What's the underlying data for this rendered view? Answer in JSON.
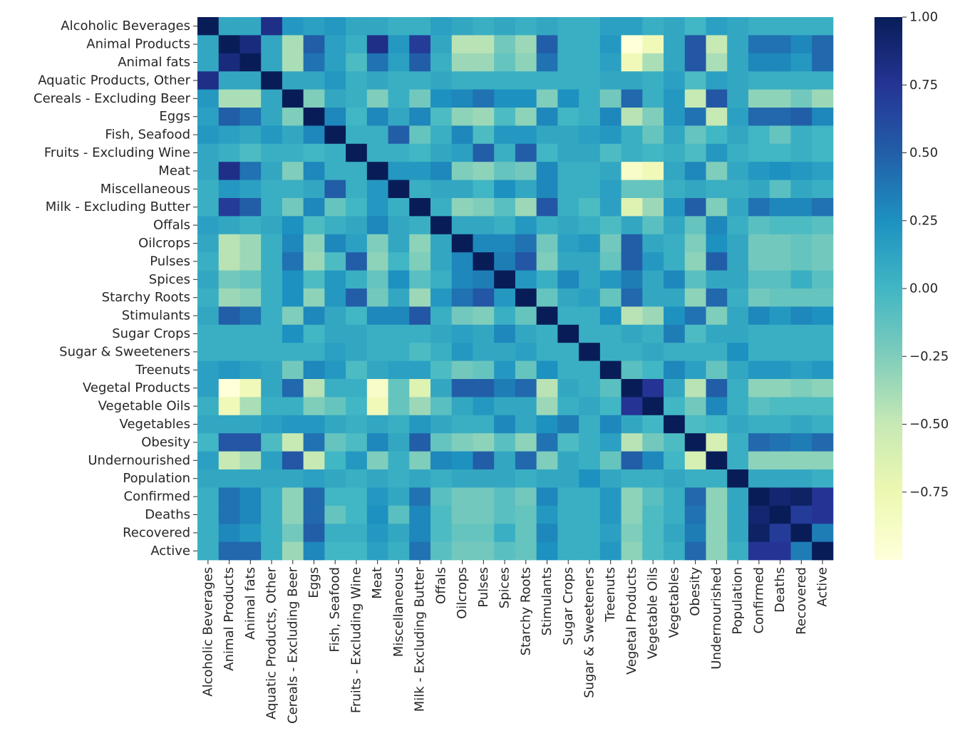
{
  "chart_data": {
    "type": "heatmap",
    "title": "",
    "xlabel": "",
    "ylabel": "",
    "labels": [
      "Alcoholic Beverages",
      "Animal Products",
      "Animal fats",
      "Aquatic Products, Other",
      "Cereals - Excluding Beer",
      "Eggs",
      "Fish, Seafood",
      "Fruits - Excluding Wine",
      "Meat",
      "Miscellaneous",
      "Milk - Excluding Butter",
      "Offals",
      "Oilcrops",
      "Pulses",
      "Spices",
      "Starchy Roots",
      "Stimulants",
      "Sugar Crops",
      "Sugar & Sweeteners",
      "Treenuts",
      "Vegetal Products",
      "Vegetable Oils",
      "Vegetables",
      "Obesity",
      "Undernourished",
      "Population",
      "Confirmed",
      "Deaths",
      "Recovered",
      "Active"
    ],
    "values": [
      [
        1.0,
        0.1,
        0.1,
        0.8,
        0.2,
        0.15,
        0.2,
        0.1,
        0.1,
        0.05,
        0.05,
        0.15,
        0.1,
        0.05,
        0.1,
        0.05,
        0.1,
        0.05,
        0.05,
        0.15,
        0.15,
        0.05,
        0.1,
        0.0,
        0.15,
        0.1,
        0.05,
        0.05,
        0.05,
        0.05
      ],
      [
        0.1,
        1.0,
        0.85,
        0.1,
        -0.4,
        0.5,
        0.15,
        0.05,
        0.8,
        0.2,
        0.7,
        0.1,
        -0.45,
        -0.45,
        -0.2,
        -0.35,
        0.5,
        0.05,
        0.05,
        0.2,
        -1.0,
        -0.8,
        0.1,
        0.55,
        -0.5,
        0.1,
        0.4,
        0.4,
        0.3,
        0.45
      ],
      [
        0.1,
        0.85,
        1.0,
        0.1,
        -0.4,
        0.4,
        0.15,
        -0.05,
        0.4,
        0.15,
        0.5,
        0.05,
        -0.35,
        -0.35,
        -0.15,
        -0.3,
        0.4,
        0.05,
        0.05,
        0.15,
        -0.8,
        -0.4,
        0.1,
        0.55,
        -0.4,
        0.1,
        0.3,
        0.3,
        0.2,
        0.45
      ],
      [
        0.8,
        0.1,
        0.1,
        1.0,
        0.1,
        0.1,
        0.2,
        0.05,
        0.1,
        0.05,
        0.05,
        0.1,
        0.05,
        0.05,
        0.05,
        0.05,
        0.05,
        0.05,
        0.05,
        0.1,
        0.1,
        0.05,
        0.15,
        -0.05,
        0.15,
        0.1,
        0.05,
        0.05,
        0.05,
        0.05
      ],
      [
        0.2,
        -0.4,
        -0.4,
        0.1,
        1.0,
        -0.25,
        0.1,
        0.05,
        -0.25,
        0.05,
        -0.2,
        0.25,
        0.3,
        0.4,
        0.25,
        0.25,
        -0.25,
        0.25,
        0.05,
        -0.2,
        0.45,
        0.05,
        0.2,
        -0.5,
        0.55,
        0.1,
        -0.3,
        -0.3,
        -0.2,
        -0.35
      ],
      [
        0.15,
        0.5,
        0.4,
        0.1,
        -0.25,
        1.0,
        0.3,
        0.0,
        0.3,
        0.1,
        0.3,
        -0.05,
        -0.3,
        -0.35,
        -0.05,
        -0.3,
        0.3,
        0.0,
        0.05,
        0.3,
        -0.45,
        -0.25,
        0.2,
        0.4,
        -0.5,
        0.15,
        0.45,
        0.45,
        0.5,
        0.3
      ],
      [
        0.2,
        0.15,
        0.1,
        0.2,
        0.1,
        0.3,
        1.0,
        0.05,
        0.05,
        0.5,
        -0.15,
        0.05,
        0.3,
        -0.05,
        0.2,
        0.2,
        0.1,
        0.1,
        0.15,
        0.2,
        0.05,
        -0.15,
        0.1,
        -0.15,
        0.0,
        0.1,
        0.0,
        -0.15,
        0.05,
        0.0
      ],
      [
        0.1,
        0.05,
        -0.05,
        0.05,
        0.05,
        0.0,
        0.05,
        1.0,
        0.05,
        0.05,
        0.0,
        0.1,
        0.15,
        0.5,
        0.05,
        0.5,
        0.0,
        0.1,
        0.1,
        -0.05,
        0.05,
        0.0,
        0.05,
        -0.05,
        0.2,
        0.05,
        0.0,
        0.0,
        0.05,
        0.0
      ],
      [
        0.1,
        0.8,
        0.4,
        0.1,
        -0.25,
        0.3,
        0.05,
        0.05,
        1.0,
        0.2,
        0.2,
        0.3,
        -0.25,
        -0.3,
        -0.15,
        -0.2,
        0.3,
        0.05,
        0.05,
        0.1,
        -0.9,
        -0.8,
        0.1,
        0.3,
        -0.25,
        0.1,
        0.2,
        0.25,
        0.2,
        0.15
      ],
      [
        0.05,
        0.2,
        0.15,
        0.05,
        0.05,
        0.1,
        0.5,
        0.05,
        0.2,
        1.0,
        0.05,
        0.1,
        0.1,
        0.0,
        0.25,
        0.1,
        0.3,
        0.05,
        0.05,
        0.15,
        -0.15,
        -0.15,
        0.05,
        0.1,
        0.05,
        0.05,
        0.1,
        -0.1,
        0.1,
        0.05
      ],
      [
        0.05,
        0.7,
        0.5,
        0.05,
        -0.2,
        0.3,
        -0.15,
        0.0,
        0.2,
        0.05,
        1.0,
        0.05,
        -0.3,
        -0.25,
        -0.1,
        -0.35,
        0.55,
        0.05,
        -0.05,
        0.15,
        -0.65,
        -0.35,
        0.2,
        0.5,
        -0.25,
        0.1,
        0.4,
        0.3,
        0.3,
        0.4
      ],
      [
        0.15,
        0.1,
        0.05,
        0.1,
        0.25,
        -0.05,
        0.05,
        0.1,
        0.3,
        0.1,
        0.05,
        1.0,
        0.1,
        0.1,
        0.05,
        0.2,
        0.05,
        0.1,
        0.05,
        -0.05,
        0.1,
        -0.1,
        0.1,
        -0.15,
        0.3,
        0.05,
        -0.1,
        -0.05,
        -0.05,
        -0.1
      ],
      [
        0.1,
        -0.45,
        -0.35,
        0.05,
        0.3,
        -0.3,
        0.3,
        0.15,
        -0.25,
        0.1,
        -0.3,
        0.1,
        1.0,
        0.3,
        0.3,
        0.4,
        -0.2,
        0.15,
        0.2,
        -0.2,
        0.5,
        0.1,
        0.05,
        -0.25,
        0.25,
        0.1,
        -0.2,
        -0.2,
        -0.15,
        -0.2
      ],
      [
        0.05,
        -0.45,
        -0.35,
        0.05,
        0.4,
        -0.35,
        -0.05,
        0.5,
        -0.3,
        0.0,
        -0.25,
        0.1,
        0.3,
        1.0,
        0.35,
        0.55,
        -0.25,
        0.1,
        0.1,
        -0.15,
        0.5,
        0.2,
        0.05,
        -0.3,
        0.5,
        0.1,
        -0.2,
        -0.2,
        -0.15,
        -0.2
      ],
      [
        0.1,
        -0.2,
        -0.15,
        0.05,
        0.25,
        -0.05,
        0.2,
        0.05,
        -0.15,
        0.25,
        -0.1,
        0.05,
        0.3,
        0.35,
        1.0,
        0.2,
        0.05,
        0.3,
        0.1,
        0.2,
        0.35,
        0.1,
        0.3,
        -0.1,
        0.1,
        0.1,
        -0.1,
        -0.1,
        0.05,
        -0.1
      ],
      [
        0.05,
        -0.35,
        -0.3,
        0.05,
        0.25,
        -0.3,
        0.2,
        0.5,
        -0.2,
        0.1,
        -0.35,
        0.2,
        0.4,
        0.55,
        0.2,
        1.0,
        -0.15,
        0.1,
        0.15,
        -0.15,
        0.45,
        0.1,
        0.1,
        -0.3,
        0.45,
        0.05,
        -0.2,
        -0.15,
        -0.15,
        -0.15
      ],
      [
        0.1,
        0.5,
        0.4,
        0.05,
        -0.25,
        0.3,
        0.1,
        0.0,
        0.3,
        0.3,
        0.55,
        0.05,
        -0.2,
        -0.25,
        0.05,
        -0.15,
        1.0,
        0.05,
        0.05,
        0.25,
        -0.45,
        -0.35,
        0.25,
        0.4,
        -0.25,
        0.1,
        0.3,
        0.2,
        0.3,
        0.25
      ],
      [
        0.05,
        0.05,
        0.05,
        0.05,
        0.25,
        0.0,
        0.1,
        0.1,
        0.05,
        0.05,
        0.05,
        0.1,
        0.15,
        0.1,
        0.3,
        0.1,
        0.05,
        1.0,
        0.05,
        0.05,
        0.1,
        0.05,
        0.35,
        -0.05,
        0.1,
        0.1,
        0.05,
        0.05,
        0.05,
        0.05
      ],
      [
        0.05,
        0.05,
        0.05,
        0.05,
        0.05,
        0.05,
        0.15,
        0.1,
        0.05,
        0.05,
        -0.05,
        0.05,
        0.2,
        0.1,
        0.1,
        0.15,
        0.05,
        0.05,
        1.0,
        0.05,
        0.05,
        0.1,
        0.05,
        0.05,
        0.05,
        0.25,
        0.05,
        0.05,
        0.05,
        0.05
      ],
      [
        0.15,
        0.2,
        0.15,
        0.1,
        -0.2,
        0.3,
        0.2,
        -0.05,
        0.1,
        0.15,
        0.15,
        -0.05,
        -0.2,
        -0.15,
        0.2,
        -0.15,
        0.25,
        0.05,
        0.05,
        1.0,
        -0.1,
        0.0,
        0.3,
        0.15,
        -0.15,
        0.1,
        0.2,
        0.2,
        0.15,
        0.2
      ],
      [
        0.15,
        -1.0,
        -0.8,
        0.1,
        0.45,
        -0.45,
        0.05,
        0.05,
        -0.9,
        -0.15,
        -0.65,
        0.1,
        0.5,
        0.5,
        0.35,
        0.45,
        -0.45,
        0.1,
        0.05,
        -0.1,
        1.0,
        0.75,
        0.1,
        -0.45,
        0.5,
        0.05,
        -0.3,
        -0.3,
        -0.25,
        -0.3
      ],
      [
        0.05,
        -0.8,
        -0.4,
        0.05,
        0.05,
        -0.25,
        -0.15,
        0.0,
        -0.8,
        -0.15,
        -0.35,
        -0.1,
        0.1,
        0.2,
        0.1,
        0.1,
        -0.35,
        0.05,
        0.1,
        0.0,
        0.75,
        1.0,
        0.0,
        -0.2,
        0.3,
        0.05,
        -0.1,
        -0.05,
        -0.05,
        -0.05
      ],
      [
        0.1,
        0.1,
        0.1,
        0.15,
        0.2,
        0.2,
        0.1,
        0.05,
        0.1,
        0.05,
        0.2,
        0.1,
        0.05,
        0.05,
        0.3,
        0.1,
        0.25,
        0.35,
        0.05,
        0.3,
        0.1,
        0.0,
        1.0,
        -0.05,
        0.0,
        0.1,
        0.05,
        0.05,
        0.1,
        0.05
      ],
      [
        0.0,
        0.55,
        0.55,
        -0.05,
        -0.5,
        0.4,
        -0.15,
        -0.05,
        0.3,
        0.1,
        0.5,
        -0.15,
        -0.25,
        -0.3,
        -0.1,
        -0.3,
        0.4,
        -0.05,
        0.05,
        0.15,
        -0.45,
        -0.2,
        -0.05,
        1.0,
        -0.6,
        0.05,
        0.45,
        0.4,
        0.35,
        0.45
      ],
      [
        0.15,
        -0.5,
        -0.4,
        0.15,
        0.55,
        -0.5,
        0.0,
        0.2,
        -0.25,
        0.05,
        -0.25,
        0.3,
        0.25,
        0.5,
        0.1,
        0.45,
        -0.25,
        0.1,
        0.05,
        -0.15,
        0.5,
        0.3,
        0.0,
        -0.6,
        1.0,
        0.05,
        -0.3,
        -0.3,
        -0.3,
        -0.3
      ],
      [
        0.1,
        0.1,
        0.1,
        0.1,
        0.1,
        0.15,
        0.1,
        0.05,
        0.1,
        0.05,
        0.1,
        0.05,
        0.1,
        0.1,
        0.1,
        0.05,
        0.1,
        0.1,
        0.25,
        0.1,
        0.05,
        0.05,
        0.1,
        0.05,
        0.05,
        1.0,
        0.1,
        0.1,
        0.1,
        0.05
      ],
      [
        0.05,
        0.4,
        0.3,
        0.05,
        -0.3,
        0.45,
        0.0,
        0.0,
        0.2,
        0.1,
        0.4,
        -0.1,
        -0.2,
        -0.2,
        -0.1,
        -0.2,
        0.3,
        0.05,
        0.05,
        0.2,
        -0.3,
        -0.1,
        0.05,
        0.45,
        -0.3,
        0.1,
        1.0,
        0.9,
        0.95,
        0.75
      ],
      [
        0.05,
        0.4,
        0.3,
        0.05,
        -0.3,
        0.45,
        -0.15,
        0.0,
        0.25,
        -0.1,
        0.3,
        -0.05,
        -0.2,
        -0.2,
        -0.1,
        -0.15,
        0.2,
        0.05,
        0.05,
        0.2,
        -0.3,
        -0.05,
        0.05,
        0.4,
        -0.3,
        0.1,
        0.9,
        1.0,
        0.7,
        0.75
      ],
      [
        0.05,
        0.3,
        0.2,
        0.05,
        -0.2,
        0.5,
        0.05,
        0.05,
        0.2,
        0.1,
        0.3,
        -0.05,
        -0.15,
        -0.15,
        0.05,
        -0.15,
        0.3,
        0.05,
        0.05,
        0.15,
        -0.25,
        -0.05,
        0.1,
        0.35,
        -0.3,
        0.1,
        0.95,
        0.7,
        1.0,
        0.35
      ],
      [
        0.05,
        0.45,
        0.45,
        0.05,
        -0.35,
        0.3,
        0.0,
        0.0,
        0.15,
        0.05,
        0.4,
        -0.1,
        -0.2,
        -0.2,
        -0.1,
        -0.15,
        0.25,
        0.05,
        0.05,
        0.2,
        -0.3,
        -0.05,
        0.05,
        0.45,
        -0.3,
        0.05,
        0.75,
        0.75,
        0.35,
        1.0
      ]
    ],
    "vmin": -1.0,
    "vmax": 1.0,
    "colormap": "YlGnBu",
    "colorbar": {
      "ticks": [
        1.0,
        0.75,
        0.5,
        0.25,
        0.0,
        -0.25,
        -0.5,
        -0.75
      ],
      "tick_labels": [
        "1.00",
        "0.75",
        "0.50",
        "0.25",
        "0.00",
        "−0.25",
        "−0.50",
        "−0.75"
      ]
    }
  }
}
